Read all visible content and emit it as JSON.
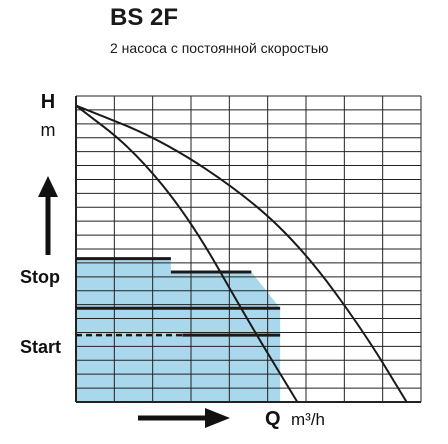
{
  "chart_data": {
    "type": "line",
    "title": "BS 2F",
    "subtitle": "2 насоса с постоянной скоростью",
    "ylabel": "H",
    "yunit": "m",
    "xlabel": "Q",
    "xunit": "m³/h",
    "xlim": [
      0,
      12
    ],
    "ylim": [
      0,
      16
    ],
    "grid": true,
    "series": [
      {
        "x": [
          0,
          2,
          4,
          6,
          7.7
        ],
        "y": [
          15.5,
          13.2,
          9.5,
          4.2,
          0
        ]
      },
      {
        "x": [
          0,
          3,
          6,
          8,
          10,
          11.5
        ],
        "y": [
          15.5,
          13.7,
          10.7,
          7.8,
          3.7,
          0
        ]
      }
    ],
    "levels": {
      "stop_label": "Stop",
      "start_label": "Start",
      "stop_y": 7.5,
      "start_y": 3.5
    },
    "shaded_region": {
      "color": "#a9d8ec",
      "upper": {
        "x": [
          0,
          3.3,
          3.3,
          6.1
        ],
        "y": [
          7.5,
          7.5,
          6.8,
          6.8
        ]
      },
      "lower_line": {
        "x": [
          0,
          7.1
        ],
        "y": [
          4.9,
          4.9
        ]
      },
      "right_edge": {
        "x": [
          6.1,
          7.1
        ],
        "y": [
          6.8,
          4.9
        ]
      },
      "line2": {
        "x": [
          3.7,
          7.1
        ],
        "y": [
          3.5,
          3.5
        ]
      }
    }
  }
}
